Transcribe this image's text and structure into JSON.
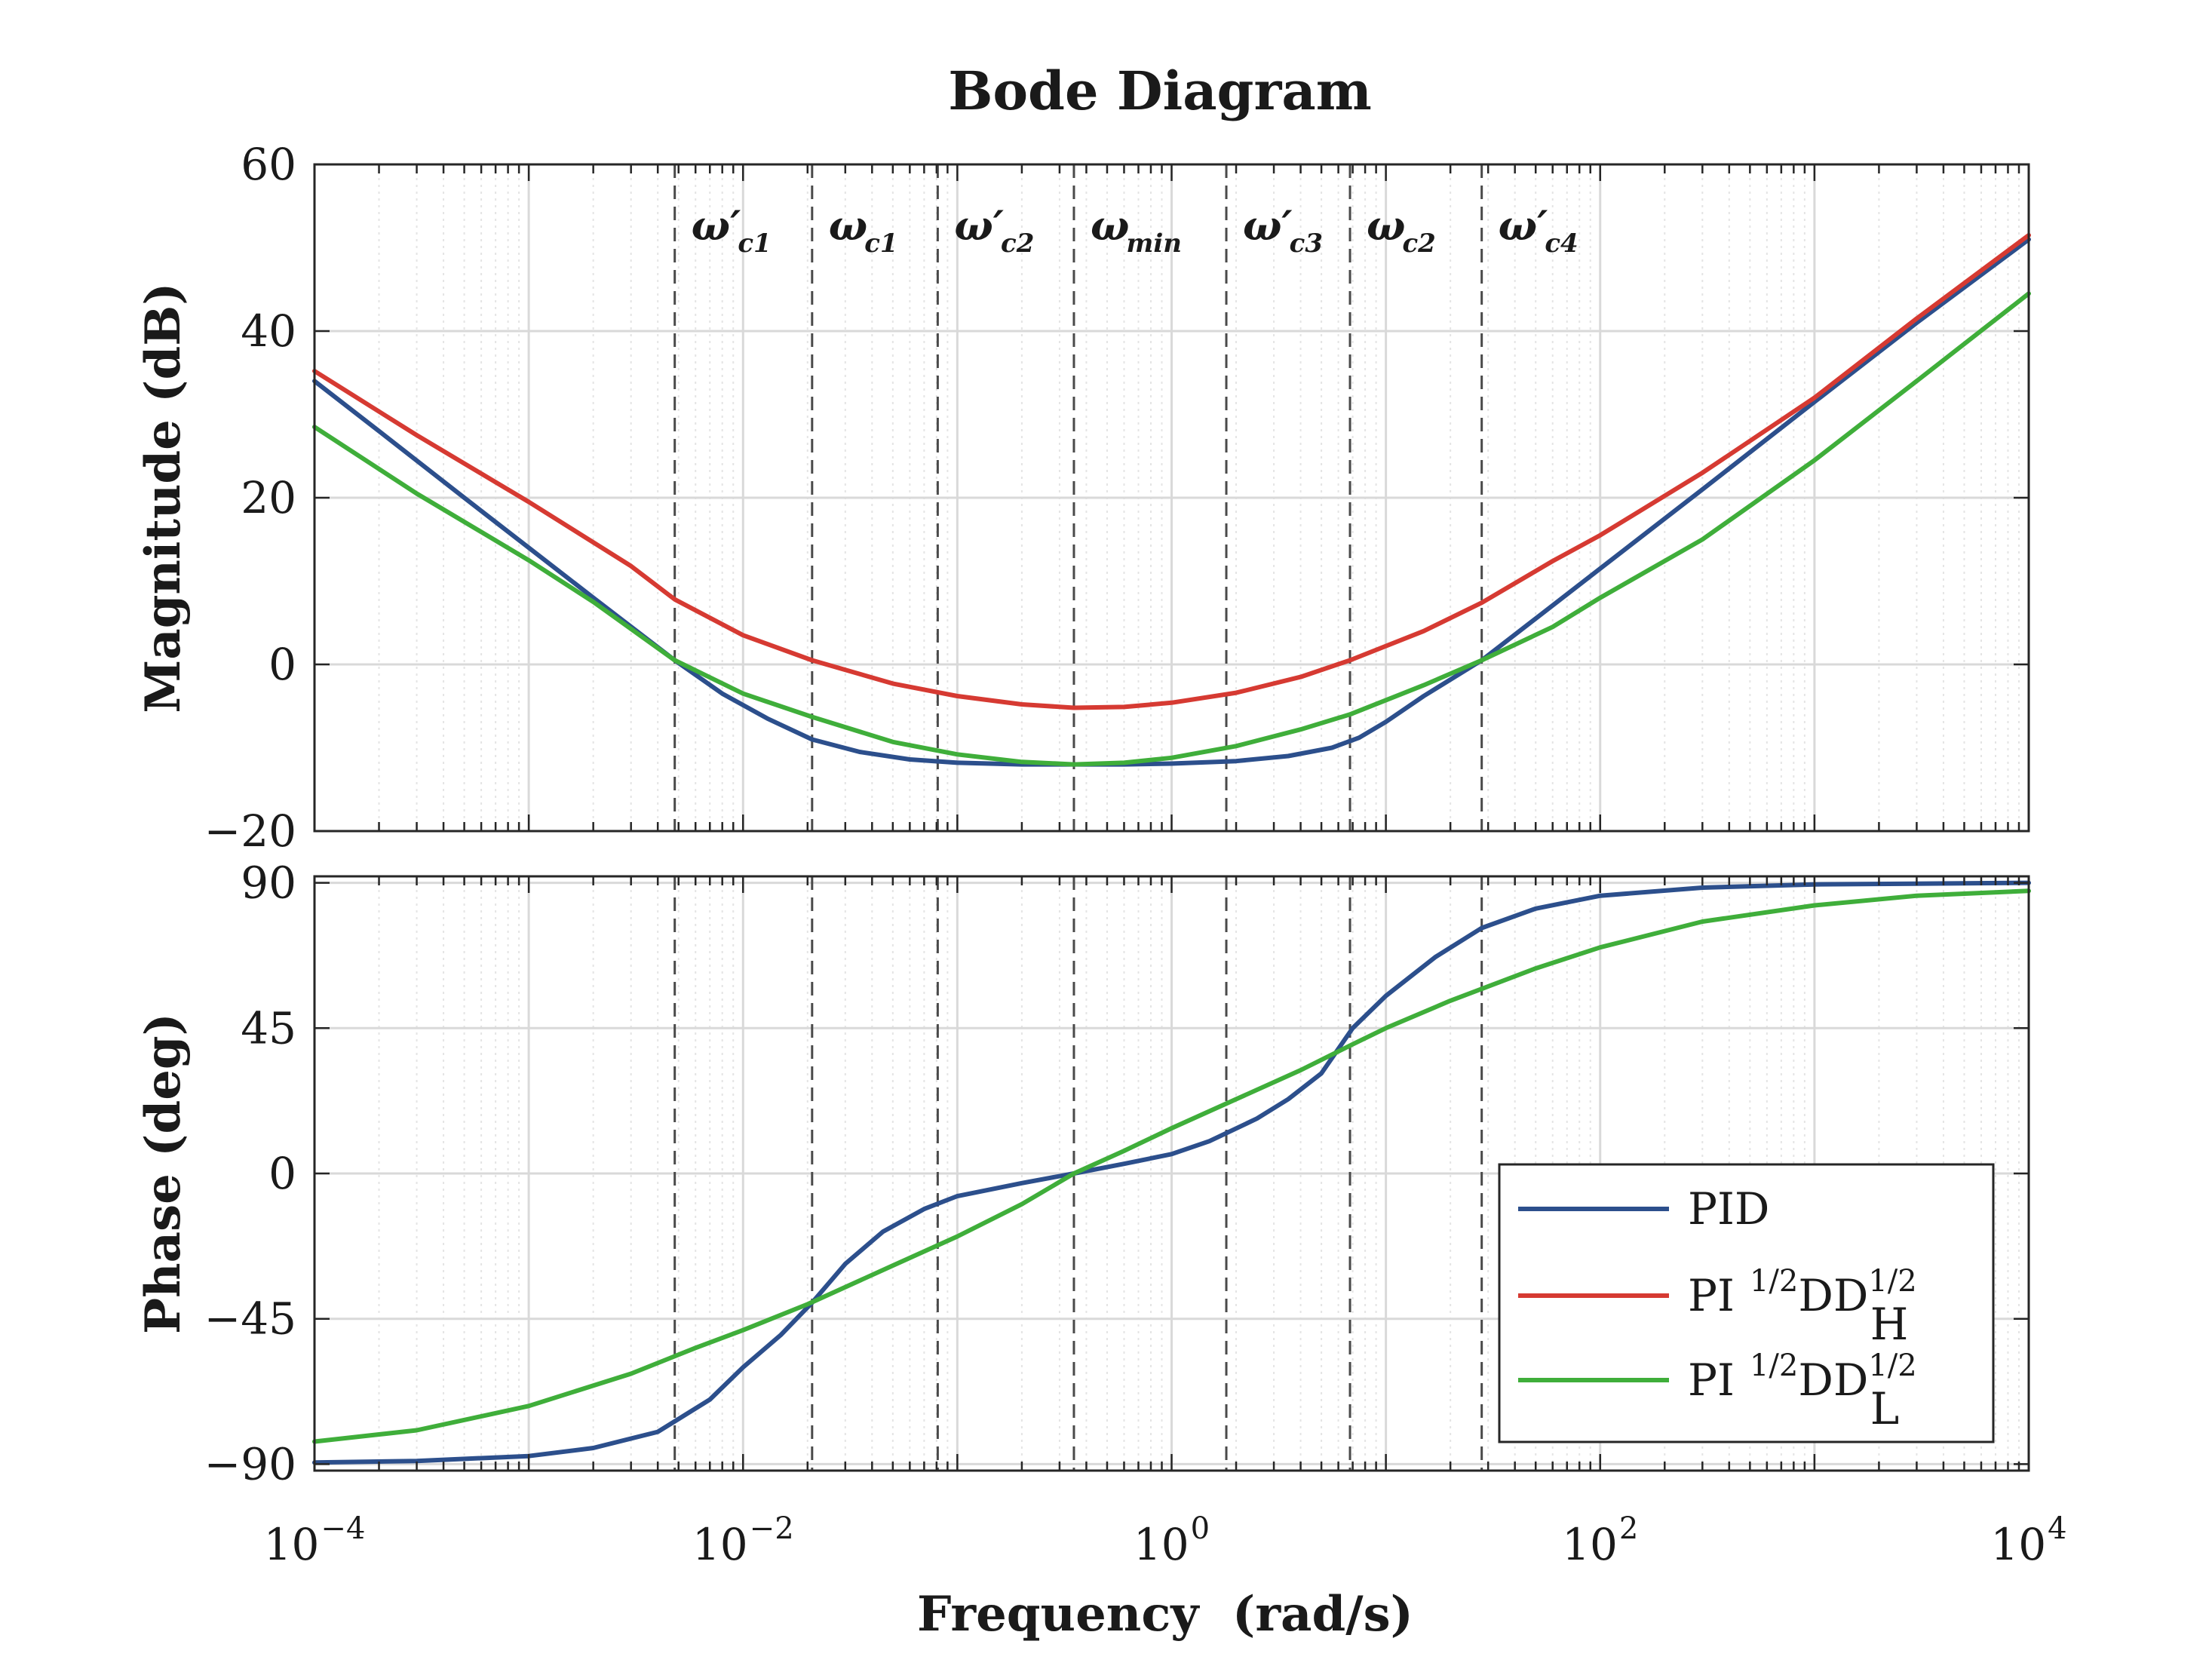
{
  "chart_data": [
    {
      "type": "line",
      "title": "Bode Diagram",
      "ylabel": "Magnitude (dB)",
      "xscale": "log",
      "xlim": [
        0.0001,
        10000
      ],
      "ylim": [
        -20,
        60
      ],
      "yticks": [
        -20,
        0,
        20,
        40,
        60
      ],
      "ytick_labels": [
        "−20",
        "0",
        "20",
        "40",
        "60"
      ],
      "grid": true,
      "vlines": [
        {
          "x": 0.0048,
          "base": "ω′",
          "sub": "c1"
        },
        {
          "x": 0.021,
          "base": "ω",
          "sub": "c1"
        },
        {
          "x": 0.081,
          "base": "ω′",
          "sub": "c2"
        },
        {
          "x": 0.35,
          "base": "ω",
          "sub": "min"
        },
        {
          "x": 1.8,
          "base": "ω′",
          "sub": "c3"
        },
        {
          "x": 6.8,
          "base": "ω",
          "sub": "c2"
        },
        {
          "x": 28,
          "base": "ω′",
          "sub": "c4"
        }
      ],
      "series": [
        {
          "name": "PID",
          "color": "#2c4f8c",
          "x": [
            0.0001,
            0.0002,
            0.0005,
            0.001,
            0.002,
            0.0048,
            0.008,
            0.013,
            0.021,
            0.035,
            0.06,
            0.1,
            0.2,
            0.35,
            0.6,
            1.0,
            2.0,
            3.5,
            5.6,
            7.5,
            10,
            15,
            28,
            50,
            100,
            300,
            1000,
            3000,
            10000
          ],
          "y": [
            34,
            28,
            20,
            14,
            8,
            0.5,
            -3.5,
            -6.5,
            -9,
            -10.5,
            -11.4,
            -11.8,
            -12,
            -12,
            -12,
            -11.9,
            -11.6,
            -11,
            -10,
            -8.8,
            -6.9,
            -3.8,
            0.5,
            5.5,
            11.5,
            21,
            31.5,
            41,
            51
          ]
        },
        {
          "name": "PI¹ᐟ²DD_H¹ᐟ²",
          "color": "#d63a32",
          "x": [
            0.0001,
            0.0003,
            0.001,
            0.003,
            0.0048,
            0.01,
            0.021,
            0.05,
            0.1,
            0.2,
            0.35,
            0.6,
            1.0,
            2.0,
            4.0,
            6.8,
            15,
            28,
            60,
            100,
            300,
            1000,
            3000,
            10000
          ],
          "y": [
            35.2,
            27.5,
            19.5,
            11.8,
            7.8,
            3.5,
            0.5,
            -2.3,
            -3.8,
            -4.8,
            -5.2,
            -5.1,
            -4.6,
            -3.4,
            -1.5,
            0.5,
            4.0,
            7.4,
            12.4,
            15.5,
            23,
            32,
            41.5,
            51.5
          ]
        },
        {
          "name": "PI¹ᐟ²DD_L¹ᐟ²",
          "color": "#3fae3a",
          "x": [
            0.0001,
            0.0003,
            0.001,
            0.002,
            0.0048,
            0.01,
            0.021,
            0.05,
            0.1,
            0.2,
            0.35,
            0.6,
            1.0,
            2.0,
            4.0,
            6.8,
            15,
            28,
            60,
            100,
            300,
            1000,
            3000,
            10000
          ],
          "y": [
            28.5,
            20.5,
            12.5,
            7.5,
            0.5,
            -3.5,
            -6.3,
            -9.3,
            -10.8,
            -11.7,
            -12,
            -11.8,
            -11.2,
            -9.8,
            -7.8,
            -6.0,
            -2.5,
            0.5,
            4.5,
            8.0,
            15.0,
            24.5,
            34,
            44.5
          ]
        }
      ]
    },
    {
      "type": "line",
      "xlabel": "Frequency  (rad/s)",
      "ylabel": "Phase (deg)",
      "xscale": "log",
      "xlim": [
        0.0001,
        10000
      ],
      "ylim": [
        -92,
        92
      ],
      "xtick_exponents": [
        -4,
        -2,
        0,
        2,
        4
      ],
      "xtick_base": "10",
      "yticks": [
        -90,
        -45,
        0,
        45,
        90
      ],
      "ytick_labels": [
        "−90",
        "−45",
        "0",
        "45",
        "90"
      ],
      "grid": true,
      "legend": "bottom-right",
      "series": [
        {
          "name": "PID",
          "color": "#2c4f8c",
          "x": [
            0.0001,
            0.0003,
            0.001,
            0.002,
            0.004,
            0.007,
            0.01,
            0.015,
            0.021,
            0.03,
            0.045,
            0.07,
            0.1,
            0.2,
            0.35,
            0.6,
            1.0,
            1.5,
            2.5,
            3.5,
            5.0,
            7.0,
            10,
            17,
            28,
            50,
            100,
            300,
            1000,
            10000
          ],
          "y": [
            -89.5,
            -89,
            -87.5,
            -85,
            -80,
            -70,
            -60,
            -50,
            -40,
            -28,
            -18,
            -11,
            -7,
            -3,
            0,
            3,
            6,
            10,
            17,
            23,
            31,
            45,
            55,
            67,
            76,
            82,
            86,
            88.5,
            89.5,
            90
          ]
        },
        {
          "name": "PI¹ᐟ²DD_L¹ᐟ²",
          "color": "#3fae3a",
          "x": [
            0.0001,
            0.0003,
            0.001,
            0.003,
            0.006,
            0.01,
            0.02,
            0.05,
            0.1,
            0.2,
            0.35,
            0.6,
            1.0,
            2.0,
            4.0,
            7.0,
            10,
            20,
            50,
            100,
            300,
            1000,
            3000,
            10000
          ],
          "y": [
            -83,
            -79.5,
            -72,
            -62,
            -54,
            -48.5,
            -40.5,
            -28.5,
            -19.5,
            -9.5,
            0,
            7,
            14,
            23,
            32,
            40,
            45,
            53.5,
            63.5,
            70,
            78,
            83,
            86,
            87.5
          ]
        }
      ]
    }
  ],
  "legend": {
    "items": [
      {
        "series": "PID",
        "color": "#2c4f8c",
        "text": "PID"
      },
      {
        "series": "PI DD_H",
        "color": "#d63a32",
        "text": "PI",
        "sup1": "1/2",
        "mid": "DD",
        "sup2": "1/2",
        "sub": "H"
      },
      {
        "series": "PI DD_L",
        "color": "#3fae3a",
        "text": "PI",
        "sup1": "1/2",
        "mid": "DD",
        "sup2": "1/2",
        "sub": "L"
      }
    ]
  }
}
